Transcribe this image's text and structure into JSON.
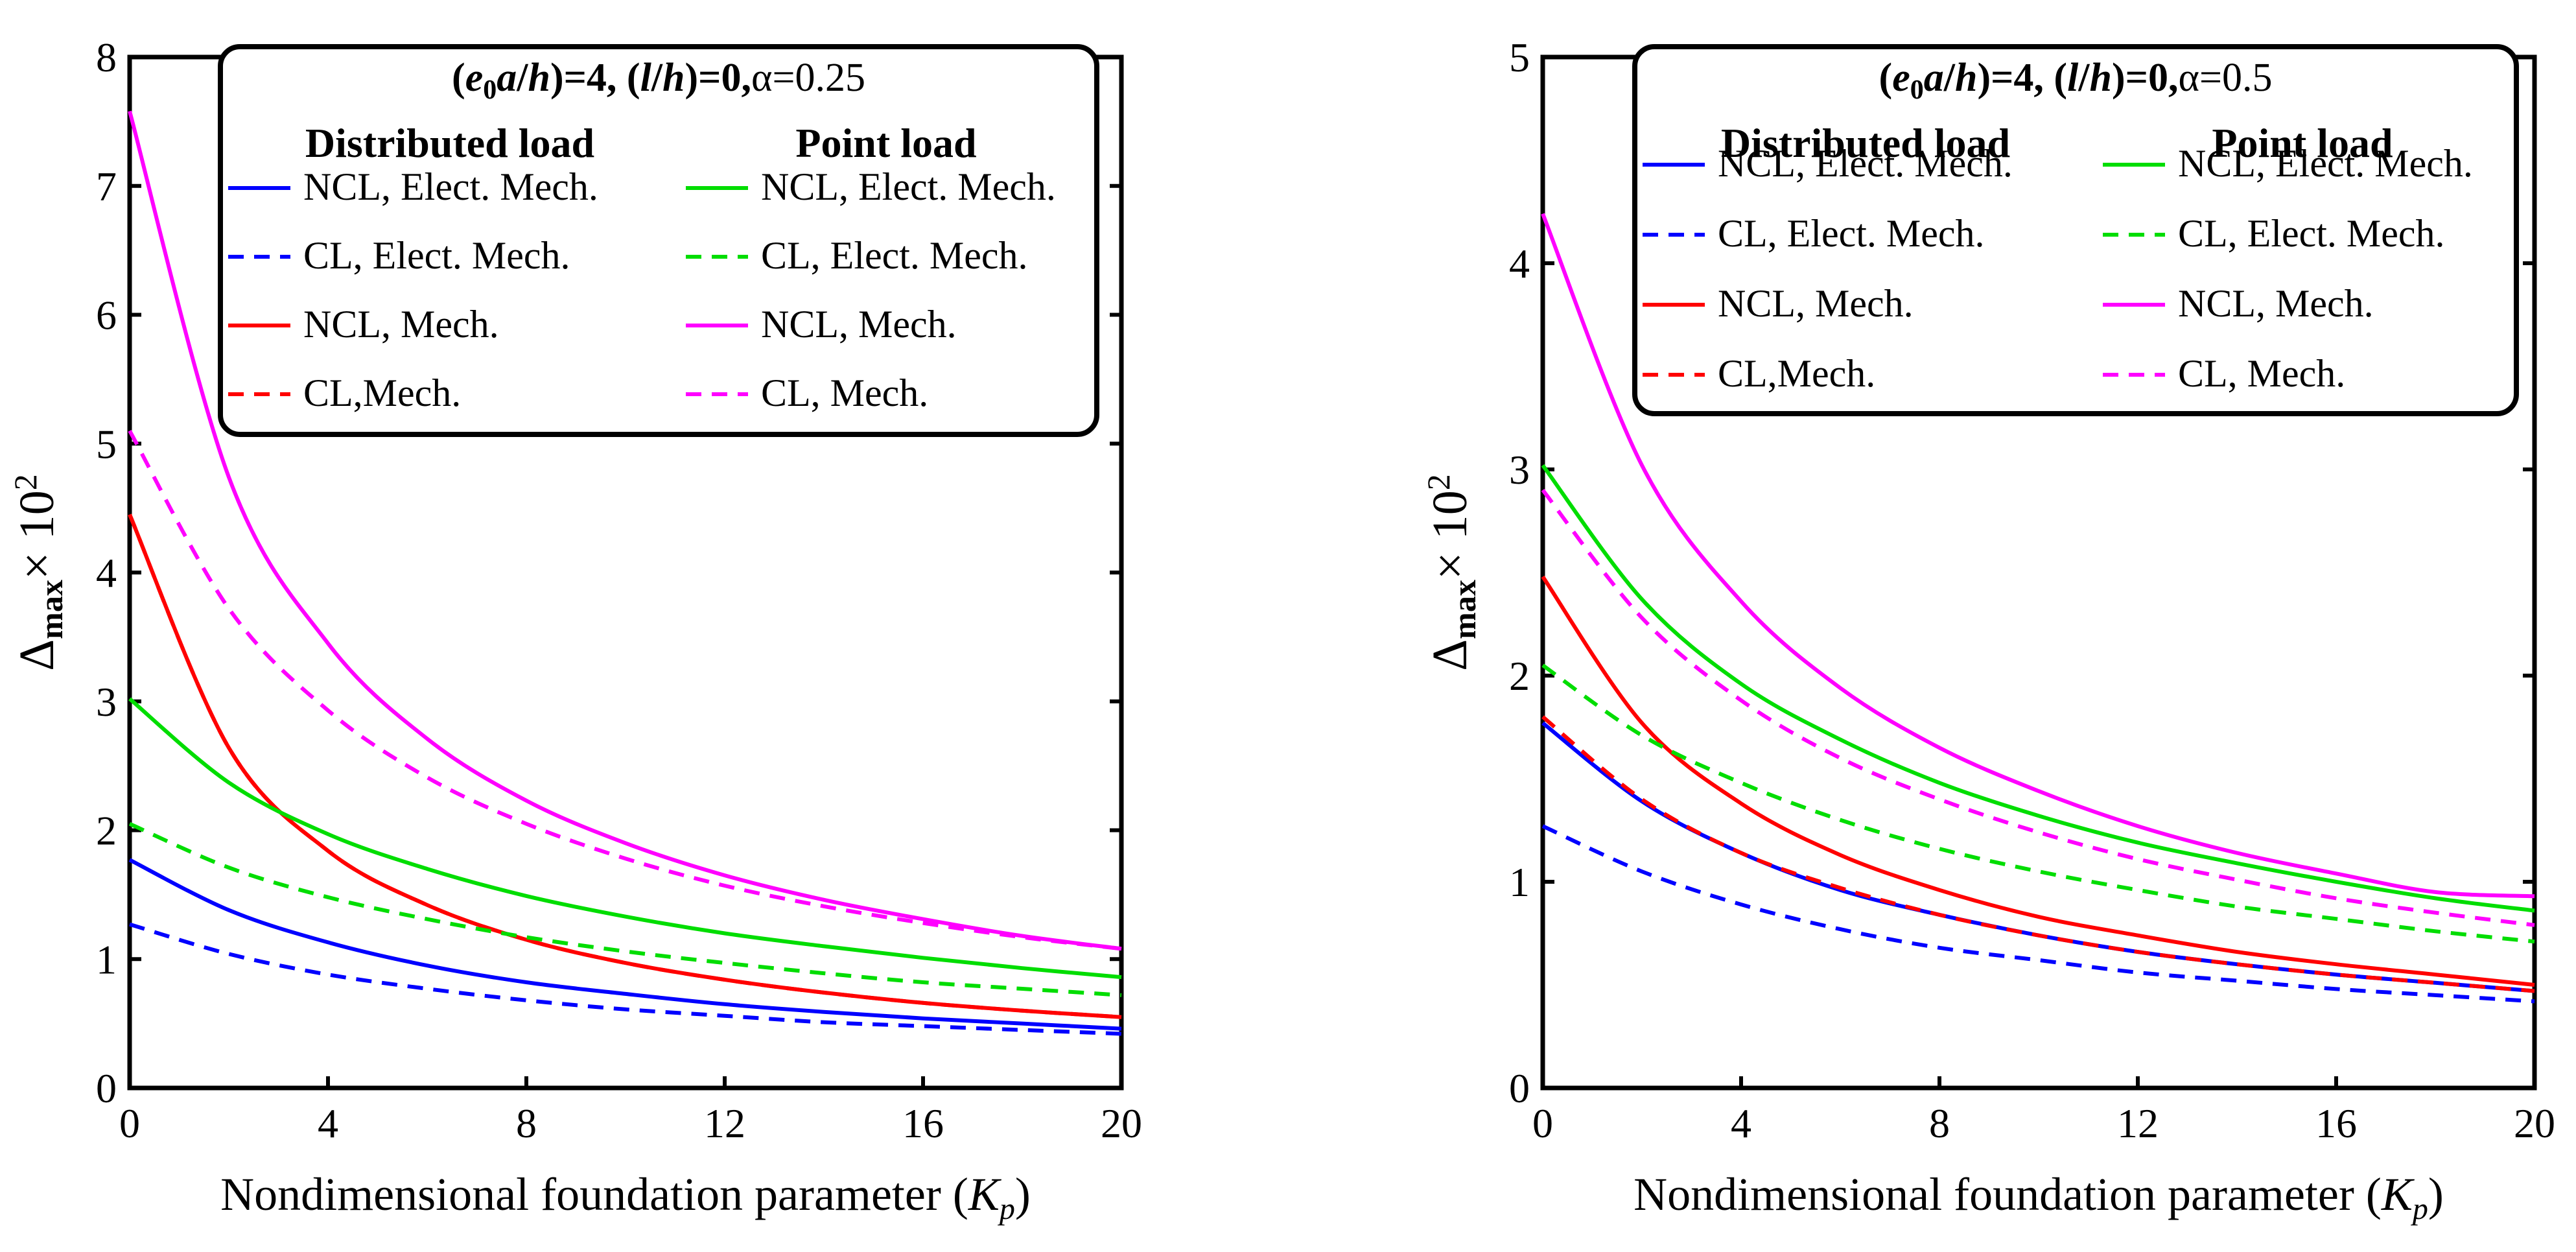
{
  "chart_data": [
    {
      "type": "line",
      "panel": "left",
      "title_parts": [
        "(",
        "e",
        "0",
        "a",
        "/",
        "h",
        ")=4, (",
        "l",
        "/",
        "h",
        ")=0,",
        "α=0.25"
      ],
      "legend_headers": [
        "Distributed load",
        "Point load"
      ],
      "xlabel_parts": [
        "Nondimensional foundation parameter (",
        "K",
        "p",
        ")"
      ],
      "ylabel_parts": [
        "Δ",
        "max",
        "× 10",
        "2"
      ],
      "xlim": [
        0,
        20
      ],
      "ylim": [
        0,
        8
      ],
      "xticks": [
        0,
        4,
        8,
        12,
        16,
        20
      ],
      "yticks": [
        0,
        1,
        2,
        3,
        4,
        5,
        6,
        7,
        8
      ],
      "series": [
        {
          "name": "NCL, Elect. Mech.",
          "group": "Distributed load",
          "color": "#0000ff",
          "dashed": false,
          "x": [
            0,
            2,
            4,
            6,
            8,
            10,
            12,
            14,
            16,
            18,
            20
          ],
          "values": [
            1.77,
            1.38,
            1.13,
            0.95,
            0.82,
            0.73,
            0.65,
            0.59,
            0.54,
            0.5,
            0.46
          ]
        },
        {
          "name": "CL, Elect. Mech.",
          "group": "Distributed load",
          "color": "#0000ff",
          "dashed": true,
          "x": [
            0,
            2,
            4,
            6,
            8,
            10,
            12,
            14,
            16,
            18,
            20
          ],
          "values": [
            1.27,
            1.04,
            0.88,
            0.77,
            0.68,
            0.61,
            0.56,
            0.51,
            0.48,
            0.45,
            0.42
          ]
        },
        {
          "name": "NCL, Mech.",
          "group": "Distributed load",
          "color": "#ff0000",
          "dashed": false,
          "x": [
            0,
            2,
            4,
            6,
            8,
            10,
            12,
            14,
            16,
            18,
            20
          ],
          "values": [
            4.45,
            2.64,
            1.84,
            1.42,
            1.15,
            0.97,
            0.84,
            0.74,
            0.66,
            0.6,
            0.55
          ]
        },
        {
          "name": "CL,Mech.",
          "group": "Distributed load",
          "color": "#ff0000",
          "dashed": true,
          "x": [
            0,
            2,
            4,
            6,
            8,
            10,
            12,
            14,
            16,
            18,
            20
          ],
          "values": [
            4.45,
            2.64,
            1.84,
            1.42,
            1.15,
            0.97,
            0.84,
            0.74,
            0.66,
            0.6,
            0.55
          ]
        },
        {
          "name": "NCL, Elect. Mech.",
          "group": "Point load",
          "color": "#00dd00",
          "dashed": false,
          "x": [
            0,
            2,
            4,
            6,
            8,
            10,
            12,
            14,
            16,
            18,
            20
          ],
          "values": [
            3.02,
            2.37,
            1.97,
            1.7,
            1.49,
            1.33,
            1.2,
            1.1,
            1.01,
            0.93,
            0.86
          ]
        },
        {
          "name": "CL, Elect. Mech.",
          "group": "Point load",
          "color": "#00dd00",
          "dashed": true,
          "x": [
            0,
            2,
            4,
            6,
            8,
            10,
            12,
            14,
            16,
            18,
            20
          ],
          "values": [
            2.05,
            1.71,
            1.48,
            1.31,
            1.17,
            1.06,
            0.97,
            0.89,
            0.82,
            0.77,
            0.72
          ]
        },
        {
          "name": "NCL, Mech.",
          "group": "Point load",
          "color": "#ff00ff",
          "dashed": false,
          "x": [
            0,
            2,
            4,
            6,
            8,
            10,
            12,
            14,
            16,
            18,
            20
          ],
          "values": [
            7.58,
            4.74,
            3.45,
            2.71,
            2.23,
            1.9,
            1.65,
            1.46,
            1.31,
            1.18,
            1.08
          ]
        },
        {
          "name": "CL, Mech.",
          "group": "Point load",
          "color": "#ff00ff",
          "dashed": true,
          "x": [
            0,
            2,
            4,
            6,
            8,
            10,
            12,
            14,
            16,
            18,
            20
          ],
          "values": [
            5.1,
            3.72,
            2.93,
            2.41,
            2.05,
            1.78,
            1.57,
            1.41,
            1.28,
            1.17,
            1.08
          ]
        }
      ]
    },
    {
      "type": "line",
      "panel": "right",
      "title_parts": [
        "(",
        "e",
        "0",
        "a",
        "/",
        "h",
        ")=4, (",
        "l",
        "/",
        "h",
        ")=0,",
        "α=0.5"
      ],
      "legend_headers": [
        "Distributed load",
        "Point load"
      ],
      "xlabel_parts": [
        "Nondimensional foundation parameter (",
        "K",
        "p",
        ")"
      ],
      "ylabel_parts": [
        "Δ",
        "max",
        "× 10",
        "2"
      ],
      "xlim": [
        0,
        20
      ],
      "ylim": [
        0,
        5
      ],
      "xticks": [
        0,
        4,
        8,
        12,
        16,
        20
      ],
      "yticks": [
        0,
        1,
        2,
        3,
        4,
        5
      ],
      "series": [
        {
          "name": "NCL, Elect. Mech.",
          "group": "Distributed load",
          "color": "#0000ff",
          "dashed": false,
          "x": [
            0,
            2,
            4,
            6,
            8,
            10,
            12,
            14,
            16,
            18,
            20
          ],
          "values": [
            1.77,
            1.39,
            1.14,
            0.96,
            0.84,
            0.74,
            0.66,
            0.6,
            0.55,
            0.51,
            0.47
          ]
        },
        {
          "name": "CL, Elect. Mech.",
          "group": "Distributed load",
          "color": "#0000ff",
          "dashed": true,
          "x": [
            0,
            2,
            4,
            6,
            8,
            10,
            12,
            14,
            16,
            18,
            20
          ],
          "values": [
            1.27,
            1.05,
            0.89,
            0.77,
            0.68,
            0.62,
            0.56,
            0.52,
            0.48,
            0.45,
            0.42
          ]
        },
        {
          "name": "NCL, Mech.",
          "group": "Distributed load",
          "color": "#ff0000",
          "dashed": false,
          "x": [
            0,
            2,
            4,
            6,
            8,
            10,
            12,
            14,
            16,
            18,
            20
          ],
          "values": [
            2.48,
            1.77,
            1.38,
            1.13,
            0.96,
            0.83,
            0.74,
            0.66,
            0.6,
            0.55,
            0.5
          ]
        },
        {
          "name": "CL,Mech.",
          "group": "Distributed load",
          "color": "#ff0000",
          "dashed": true,
          "x": [
            0,
            2,
            4,
            6,
            8,
            10,
            12,
            14,
            16,
            18,
            20
          ],
          "values": [
            1.8,
            1.4,
            1.14,
            0.97,
            0.84,
            0.74,
            0.66,
            0.6,
            0.55,
            0.51,
            0.47
          ]
        },
        {
          "name": "NCL, Elect. Mech.",
          "group": "Point load",
          "color": "#00dd00",
          "dashed": false,
          "x": [
            0,
            2,
            4,
            6,
            8,
            10,
            12,
            14,
            16,
            18,
            20
          ],
          "values": [
            3.02,
            2.37,
            1.96,
            1.69,
            1.48,
            1.32,
            1.19,
            1.09,
            1.0,
            0.92,
            0.86
          ]
        },
        {
          "name": "CL, Elect. Mech.",
          "group": "Point load",
          "color": "#00dd00",
          "dashed": true,
          "x": [
            0,
            2,
            4,
            6,
            8,
            10,
            12,
            14,
            16,
            18,
            20
          ],
          "values": [
            2.05,
            1.71,
            1.48,
            1.3,
            1.16,
            1.05,
            0.96,
            0.88,
            0.82,
            0.76,
            0.71
          ]
        },
        {
          "name": "NCL, Mech.",
          "group": "Point load",
          "color": "#ff00ff",
          "dashed": false,
          "x": [
            0,
            2,
            4,
            6,
            8,
            10,
            12,
            14,
            16,
            18,
            20
          ],
          "values": [
            4.24,
            3.02,
            2.36,
            1.94,
            1.65,
            1.44,
            1.27,
            1.14,
            1.04,
            0.95,
            0.93
          ]
        },
        {
          "name": "CL, Mech.",
          "group": "Point load",
          "color": "#ff00ff",
          "dashed": true,
          "x": [
            0,
            2,
            4,
            6,
            8,
            10,
            12,
            14,
            16,
            18,
            20
          ],
          "values": [
            2.9,
            2.28,
            1.88,
            1.6,
            1.4,
            1.24,
            1.11,
            1.01,
            0.92,
            0.85,
            0.79
          ]
        }
      ]
    }
  ]
}
